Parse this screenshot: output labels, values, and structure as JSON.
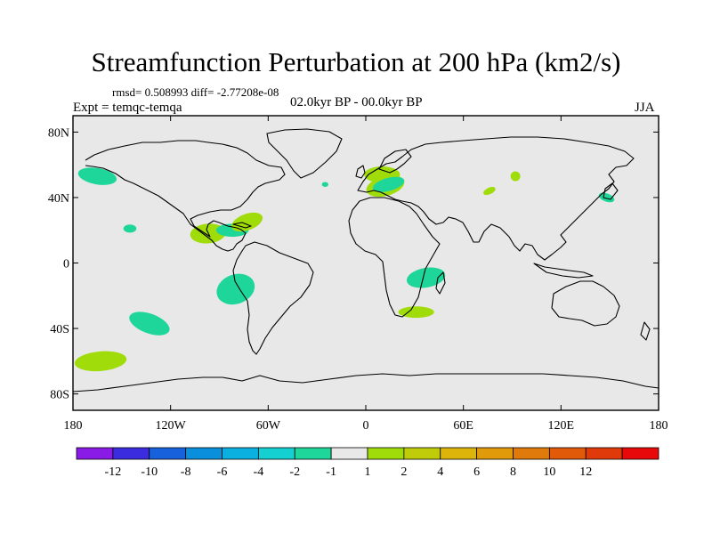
{
  "title": "Streamfunction Perturbation at 200 hPa (km2/s)",
  "stats": "rmsd= 0.508993 diff= -2.77208e-08",
  "experiment": "Expt = temqc-temqa",
  "period": "02.0kyr BP - 00.0kyr BP",
  "season": "JJA",
  "map": {
    "lon_range": [
      -180,
      180
    ],
    "lat_range": [
      -90,
      90
    ],
    "background_color": "#e8e8e8",
    "coastline_color": "#000000"
  },
  "axes": {
    "x_ticks": [
      {
        "value": -180,
        "label": "180"
      },
      {
        "value": -120,
        "label": "120W"
      },
      {
        "value": -60,
        "label": "60W"
      },
      {
        "value": 0,
        "label": "0"
      },
      {
        "value": 60,
        "label": "60E"
      },
      {
        "value": 120,
        "label": "120E"
      },
      {
        "value": 180,
        "label": "180"
      }
    ],
    "y_ticks": [
      {
        "value": 80,
        "label": "80N"
      },
      {
        "value": 40,
        "label": "40N"
      },
      {
        "value": 0,
        "label": "0"
      },
      {
        "value": -40,
        "label": "40S"
      },
      {
        "value": -80,
        "label": "80S"
      }
    ]
  },
  "anomalies": [
    {
      "lon": -165,
      "lat": 53,
      "rlon": 12,
      "rlat": 5,
      "rot": 10,
      "color": "#1fd69a"
    },
    {
      "lon": -145,
      "lat": 21,
      "rlon": 4,
      "rlat": 2.5,
      "rot": 0,
      "color": "#1fd69a"
    },
    {
      "lon": -97,
      "lat": 18,
      "rlon": 11,
      "rlat": 6,
      "rot": -5,
      "color": "#a0dc0a"
    },
    {
      "lon": -82,
      "lat": 20,
      "rlon": 10,
      "rlat": 4,
      "rot": 0,
      "color": "#1fd69a"
    },
    {
      "lon": -73,
      "lat": 25,
      "rlon": 10,
      "rlat": 5,
      "rot": -20,
      "color": "#a0dc0a"
    },
    {
      "lon": -80,
      "lat": -16,
      "rlon": 12,
      "rlat": 9,
      "rot": -20,
      "color": "#1fd69a"
    },
    {
      "lon": -133,
      "lat": -37,
      "rlon": 13,
      "rlat": 6,
      "rot": 20,
      "color": "#1fd69a"
    },
    {
      "lon": -163,
      "lat": -60,
      "rlon": 16,
      "rlat": 6,
      "rot": -5,
      "color": "#a0dc0a"
    },
    {
      "lon": -25,
      "lat": 48,
      "rlon": 2,
      "rlat": 1.5,
      "rot": 0,
      "color": "#1fd69a"
    },
    {
      "lon": 10,
      "lat": 54,
      "rlon": 11,
      "rlat": 5,
      "rot": 0,
      "color": "#a0dc0a"
    },
    {
      "lon": 12,
      "lat": 47,
      "rlon": 12,
      "rlat": 6,
      "rot": -15,
      "color": "#a0dc0a"
    },
    {
      "lon": 14,
      "lat": 48,
      "rlon": 10,
      "rlat": 4,
      "rot": -15,
      "color": "#1fd69a"
    },
    {
      "lon": 92,
      "lat": 53,
      "rlon": 3,
      "rlat": 3,
      "rot": -30,
      "color": "#a0dc0a"
    },
    {
      "lon": 76,
      "lat": 44,
      "rlon": 4,
      "rlat": 2,
      "rot": -25,
      "color": "#a0dc0a"
    },
    {
      "lon": 148,
      "lat": 40,
      "rlon": 5,
      "rlat": 2.5,
      "rot": 20,
      "color": "#1fd69a"
    },
    {
      "lon": 37,
      "lat": -9,
      "rlon": 12,
      "rlat": 6,
      "rot": -10,
      "color": "#1fd69a"
    },
    {
      "lon": 31,
      "lat": -30,
      "rlon": 11,
      "rlat": 3.5,
      "rot": 0,
      "color": "#a0dc0a"
    }
  ],
  "colorbar": {
    "colors": [
      "#8a1ae6",
      "#3c2ce0",
      "#1762dc",
      "#0a8fdc",
      "#0ab0e0",
      "#14d0d0",
      "#1fd69a",
      "#e8e8e8",
      "#a0dc0a",
      "#c0cc0a",
      "#dcb40a",
      "#e09a0a",
      "#e07a0a",
      "#e05a0a",
      "#e03a0a",
      "#e80a0a"
    ],
    "labels": [
      "-12",
      "-10",
      "-8",
      "-6",
      "-4",
      "-2",
      "-1",
      "1",
      "2",
      "4",
      "6",
      "8",
      "10",
      "12"
    ]
  }
}
